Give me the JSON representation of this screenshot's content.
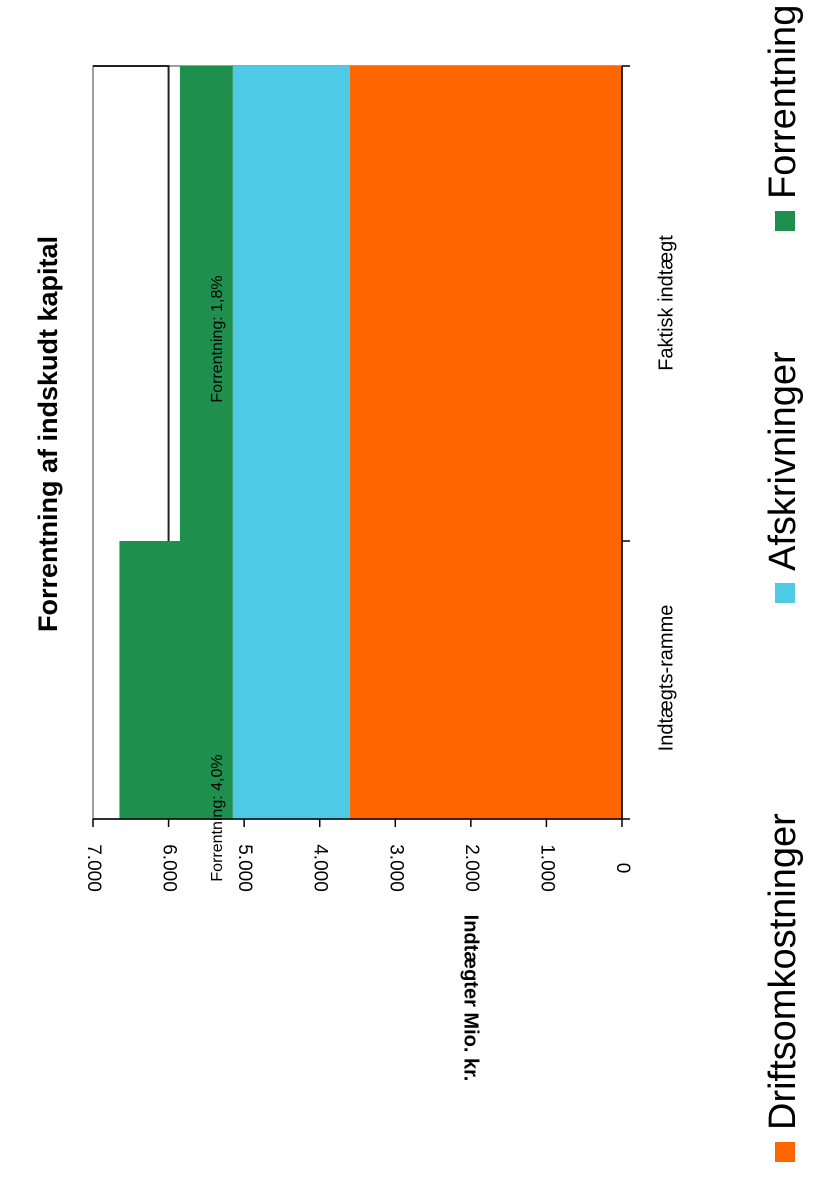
{
  "chart_data": {
    "type": "bar",
    "stacked": true,
    "orientation": "vertical",
    "rotation": "rotated 90 degrees clockwise",
    "title": "Forrentning af indskudt kapital",
    "ylabel": "Indtægter Mio. kr.",
    "xlabel": "",
    "ylim": [
      0,
      7000
    ],
    "yticks": [
      "0",
      "1.000",
      "2.000",
      "3.000",
      "4.000",
      "5.000",
      "6.000",
      "7.000"
    ],
    "ytick_values": [
      0,
      1000,
      2000,
      3000,
      4000,
      5000,
      6000,
      7000
    ],
    "categories": [
      "Indtægts-ramme",
      "Faktisk indtægt"
    ],
    "series": [
      {
        "name": "Driftsomkostninger",
        "color": "#ff6600",
        "values": [
          3600,
          3600
        ]
      },
      {
        "name": "Afskrivninger",
        "color": "#4ec9e6",
        "values": [
          1550,
          1550
        ]
      },
      {
        "name": "Forrentning",
        "color": "#1f8f4e",
        "values": [
          1500,
          700
        ]
      }
    ],
    "reference_line": {
      "value": 6000,
      "color": "#222222"
    },
    "annotations": [
      "Forrentning: 4,0%",
      "Forrentning: 1,8%"
    ],
    "legend": {
      "placement": "bottom"
    }
  }
}
